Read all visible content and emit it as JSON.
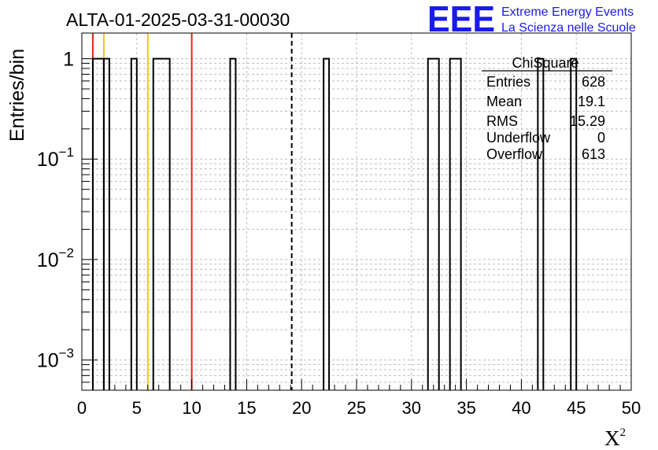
{
  "chart_data": {
    "type": "bar",
    "title": "ALTA-01-2025-03-31-00030",
    "xlabel": "X",
    "xlabel_sup": "2",
    "ylabel": "Entries/bin",
    "xlim": [
      0,
      50
    ],
    "ylim": [
      0.0005,
      1.8
    ],
    "yscale": "log",
    "grid": true,
    "bin_width": 1,
    "bins": [
      {
        "x0": 1,
        "x1": 2,
        "value": 1
      },
      {
        "x0": 2,
        "x1": 2.5,
        "value": 1
      },
      {
        "x0": 4.5,
        "x1": 5,
        "value": 1
      },
      {
        "x0": 6.5,
        "x1": 8,
        "value": 1
      },
      {
        "x0": 13.5,
        "x1": 14,
        "value": 1
      },
      {
        "x0": 22,
        "x1": 22.5,
        "value": 1
      },
      {
        "x0": 31.5,
        "x1": 32.5,
        "value": 1
      },
      {
        "x0": 33.5,
        "x1": 34.5,
        "value": 1
      },
      {
        "x0": 41.5,
        "x1": 42,
        "value": 1
      },
      {
        "x0": 44.5,
        "x1": 45,
        "value": 1
      }
    ],
    "xticks": [
      0,
      5,
      10,
      15,
      20,
      25,
      30,
      35,
      40,
      45,
      50
    ],
    "xtick_labels": [
      "0",
      "5",
      "10",
      "15",
      "20",
      "25",
      "30",
      "35",
      "40",
      "45",
      "50"
    ],
    "ytick_major": [
      {
        "value": 1,
        "base": "1",
        "exp": ""
      },
      {
        "value": 0.1,
        "base": "10",
        "exp": "−1"
      },
      {
        "value": 0.01,
        "base": "10",
        "exp": "−2"
      },
      {
        "value": 0.001,
        "base": "10",
        "exp": "−3"
      }
    ],
    "vlines": [
      {
        "x": 1,
        "color": "#e8261a",
        "style": "solid"
      },
      {
        "x": 2,
        "color": "#f5c518",
        "style": "solid"
      },
      {
        "x": 6,
        "color": "#f5c518",
        "style": "solid"
      },
      {
        "x": 10,
        "color": "#e8261a",
        "style": "solid"
      },
      {
        "x": 19.1,
        "color": "#000000",
        "style": "dashed"
      }
    ],
    "stats": {
      "title": "ChiSquare",
      "rows": [
        {
          "label": "Entries",
          "value": "628"
        },
        {
          "label": "Mean",
          "value": "19.1"
        },
        {
          "label": "RMS",
          "value": "15.29"
        },
        {
          "label": "Underflow",
          "value": "0"
        },
        {
          "label": "Overflow",
          "value": "613"
        }
      ]
    }
  },
  "logo": {
    "mark": "EEE",
    "line1": "Extreme Energy Events",
    "line2": "La Scienza nelle Scuole",
    "color": "#1a1aee"
  }
}
